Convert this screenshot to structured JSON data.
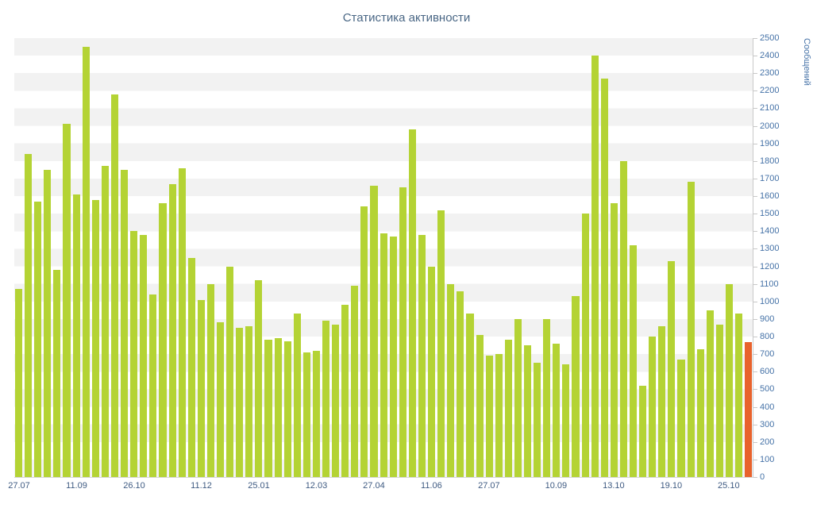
{
  "title": "Статистика активности",
  "y_axis": {
    "title": "Сообщений",
    "min": 0,
    "max": 2500,
    "step": 100
  },
  "colors": {
    "bar": "#b4d334",
    "highlight_last_bar": "#e8622c",
    "stripe": "#f2f2f2",
    "axis_line": "#c8c8c8",
    "title_text": "#4a6785",
    "y_label_text": "#4572a7",
    "x_label_text": "#3f5b82"
  },
  "chart_data": {
    "type": "bar",
    "title": "Статистика активности",
    "xlabel": "",
    "ylabel": "Сообщений",
    "ylim": [
      0,
      2500
    ],
    "grid": "horizontal-stripes-every-100",
    "legend": "none",
    "values": [
      1070,
      1840,
      1570,
      1750,
      1180,
      2010,
      1610,
      2450,
      1580,
      1770,
      2180,
      1750,
      1400,
      1380,
      1040,
      1560,
      1670,
      1760,
      1250,
      1010,
      1100,
      880,
      1200,
      850,
      860,
      1120,
      780,
      790,
      775,
      930,
      710,
      720,
      890,
      870,
      980,
      1090,
      1540,
      1660,
      1390,
      1370,
      1650,
      1980,
      1380,
      1200,
      1520,
      1100,
      1060,
      930,
      810,
      690,
      700,
      780,
      900,
      750,
      650,
      900,
      760,
      640,
      1030,
      1500,
      2400,
      2270,
      1560,
      1800,
      1320,
      520,
      800,
      860,
      1230,
      670,
      1680,
      730,
      950,
      870,
      1100,
      930,
      770
    ],
    "last_bar_highlighted": true,
    "x_tick_labels": [
      {
        "label": "27.07",
        "index": 0
      },
      {
        "label": "11.09",
        "index": 6
      },
      {
        "label": "26.10",
        "index": 12
      },
      {
        "label": "11.12",
        "index": 19
      },
      {
        "label": "25.01",
        "index": 25
      },
      {
        "label": "12.03",
        "index": 31
      },
      {
        "label": "27.04",
        "index": 37
      },
      {
        "label": "11.06",
        "index": 43
      },
      {
        "label": "27.07",
        "index": 49
      },
      {
        "label": "10.09",
        "index": 56
      },
      {
        "label": "13.10",
        "index": 62
      },
      {
        "label": "19.10",
        "index": 68
      },
      {
        "label": "25.10",
        "index": 74
      }
    ]
  }
}
